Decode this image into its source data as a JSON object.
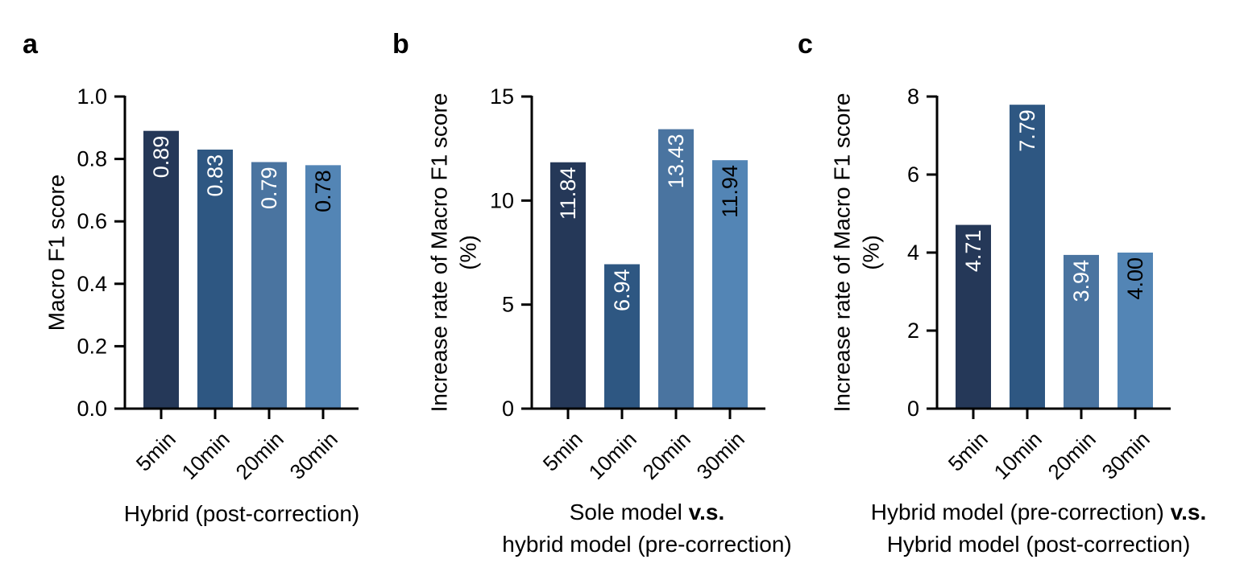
{
  "colors": [
    "#253858",
    "#2e5782",
    "#4a74a0",
    "#5385b5"
  ],
  "bar_label_colors": [
    "#ffffff",
    "#ffffff",
    "#ffffff",
    "#000000"
  ],
  "panels": [
    {
      "letter": "a",
      "ylabel_lines": [
        "Macro F1 score"
      ],
      "xtitle_lines": [
        [
          {
            "text": "Hybrid (post-correction)",
            "bold": false
          }
        ]
      ]
    },
    {
      "letter": "b",
      "ylabel_lines": [
        "Increase rate of Macro F1 score",
        "(%)"
      ],
      "xtitle_lines": [
        [
          {
            "text": "Sole model ",
            "bold": false
          },
          {
            "text": "v.s.",
            "bold": true
          }
        ],
        [
          {
            "text": "hybrid model (pre-correction)",
            "bold": false
          }
        ]
      ]
    },
    {
      "letter": "c",
      "ylabel_lines": [
        "Increase rate of Macro F1 score",
        "(%)"
      ],
      "xtitle_lines": [
        [
          {
            "text": "Hybrid model (pre-correction) ",
            "bold": false
          },
          {
            "text": "v.s.",
            "bold": true
          }
        ],
        [
          {
            "text": "Hybrid model (post-correction)",
            "bold": false
          }
        ]
      ]
    }
  ],
  "chart_data": [
    {
      "type": "bar",
      "categories": [
        "5min",
        "10min",
        "20min",
        "30min"
      ],
      "values": [
        0.89,
        0.83,
        0.79,
        0.78
      ],
      "value_labels": [
        "0.89",
        "0.83",
        "0.79",
        "0.78"
      ],
      "ylabel": "Macro F1 score",
      "xlabel": "Hybrid (post-correction)",
      "ylim": [
        0,
        1.0
      ],
      "yticks": [
        0.0,
        0.2,
        0.4,
        0.6,
        0.8,
        1.0
      ],
      "ytick_labels": [
        "0.0",
        "0.2",
        "0.4",
        "0.6",
        "0.8",
        "1.0"
      ],
      "grid": false
    },
    {
      "type": "bar",
      "categories": [
        "5min",
        "10min",
        "20min",
        "30min"
      ],
      "values": [
        11.84,
        6.94,
        13.43,
        11.94
      ],
      "value_labels": [
        "11.84",
        "6.94",
        "13.43",
        "11.94"
      ],
      "ylabel": "Increase rate of Macro F1 score (%)",
      "xlabel": "Sole model v.s. hybrid model (pre-correction)",
      "ylim": [
        0,
        15
      ],
      "yticks": [
        0,
        5,
        10,
        15
      ],
      "ytick_labels": [
        "0",
        "5",
        "10",
        "15"
      ],
      "grid": false
    },
    {
      "type": "bar",
      "categories": [
        "5min",
        "10min",
        "20min",
        "30min"
      ],
      "values": [
        4.71,
        7.79,
        3.94,
        4.0
      ],
      "value_labels": [
        "4.71",
        "7.79",
        "3.94",
        "4.00"
      ],
      "ylabel": "Increase rate of Macro F1 score (%)",
      "xlabel": "Hybrid model (pre-correction) v.s. Hybrid model (post-correction)",
      "ylim": [
        0,
        8
      ],
      "yticks": [
        0,
        2,
        4,
        6,
        8
      ],
      "ytick_labels": [
        "0",
        "2",
        "4",
        "6",
        "8"
      ],
      "grid": false
    }
  ]
}
